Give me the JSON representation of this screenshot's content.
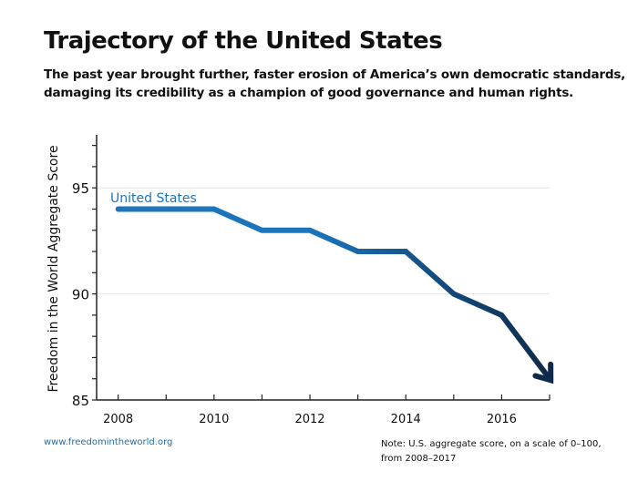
{
  "title": "Trajectory of the United States",
  "subtitle": "The past year brought further, faster erosion of America’s own democratic standards, damaging its credibility as a champion of good governance and human rights.",
  "source": "www.freedomintheworld.org",
  "note": "Note: U.S. aggregate score, on a scale of 0–100, from 2008–2017",
  "chart_data": {
    "type": "line",
    "title": "Trajectory of the United States",
    "xlabel": "",
    "ylabel": "Freedom in the World Aggregate Score",
    "x": [
      2008,
      2009,
      2010,
      2011,
      2012,
      2013,
      2014,
      2015,
      2016,
      2017
    ],
    "series": [
      {
        "name": "United States",
        "values": [
          94,
          94,
          94,
          93,
          93,
          92,
          92,
          90,
          89,
          86
        ],
        "color": "#1a75bc",
        "end_color": "#0f2a4a",
        "end_marker": "arrow"
      }
    ],
    "xlim": [
      2007.55,
      2017
    ],
    "ylim": [
      85,
      97.5
    ],
    "xticks": [
      "2008",
      "2010",
      "2012",
      "2014",
      "2016"
    ],
    "yticks": [
      "85",
      "90",
      "95"
    ],
    "grid": "horizontal at labeled y ticks",
    "legend": "inline label"
  }
}
